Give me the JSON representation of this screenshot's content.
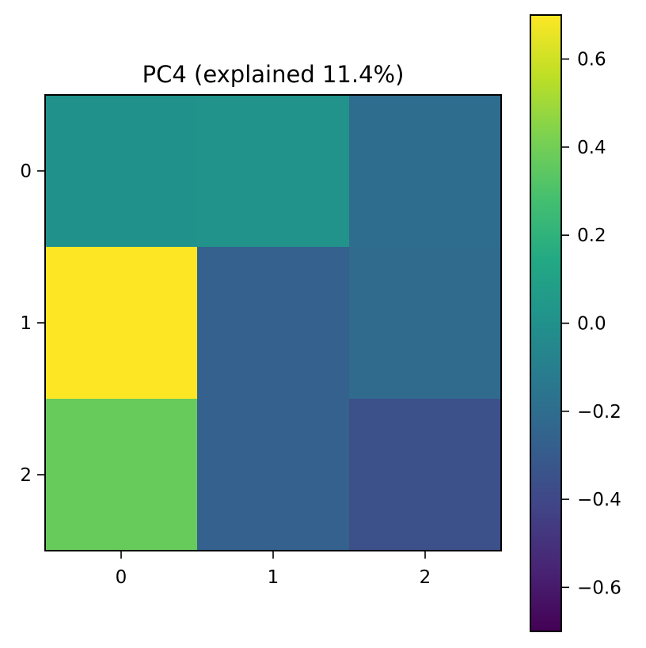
{
  "chart_data": {
    "type": "heatmap",
    "title": "PC4 (explained 11.4%)",
    "xlabel": "",
    "ylabel": "",
    "x_categories": [
      "0",
      "1",
      "2"
    ],
    "y_categories": [
      "0",
      "1",
      "2"
    ],
    "values": [
      [
        0.0,
        0.01,
        -0.2
      ],
      [
        0.7,
        -0.27,
        -0.22
      ],
      [
        0.37,
        -0.27,
        -0.36
      ]
    ],
    "colormap": "viridis",
    "colorbar": {
      "vmin": -0.7,
      "vmax": 0.7,
      "ticks": [
        0.6,
        0.4,
        0.2,
        0.0,
        -0.2,
        -0.4,
        -0.6
      ],
      "tick_labels": [
        "0.6",
        "0.4",
        "0.2",
        "0.0",
        "−0.2",
        "−0.4",
        "−0.6"
      ]
    },
    "grid": false
  }
}
